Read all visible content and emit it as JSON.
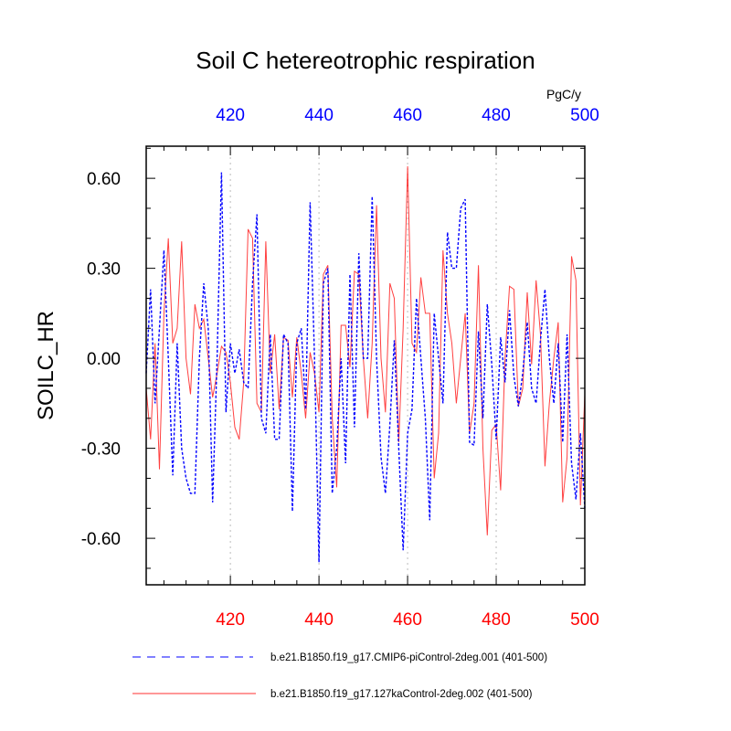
{
  "chart_data": {
    "type": "line",
    "title": "Soil C hetereotrophic respiration",
    "units_label": "PgC/y",
    "ylabel": "SOILC_HR",
    "xlabel": "",
    "xlim": [
      401,
      500
    ],
    "ylim": [
      -0.755,
      0.707
    ],
    "x_ticks": [
      420,
      440,
      460,
      480,
      500
    ],
    "x_tick_labels": [
      "420",
      "440",
      "460",
      "480",
      "500"
    ],
    "y_ticks": [
      0.6,
      0.3,
      0.0,
      -0.3,
      -0.6
    ],
    "y_tick_labels": [
      "0.60",
      "0.30",
      "0.00",
      "-0.30",
      "-0.60"
    ],
    "grid": "vertical dotted at major x ticks",
    "legend_position": "bottom",
    "colors": {
      "top_axis": "#0000ff",
      "bottom_axis": "#ff0000"
    },
    "x_start": 401,
    "series": [
      {
        "name": "b.e21.B1850.f19_g17.CMIP6-piControl-2deg.001 (401-500)",
        "color": "#0000ff",
        "dash": true,
        "values": [
          -0.05,
          0.23,
          -0.15,
          0.1,
          0.36,
          0.0,
          -0.39,
          0.05,
          -0.3,
          -0.4,
          -0.45,
          -0.45,
          0.0,
          0.25,
          0.1,
          -0.48,
          0.0,
          0.62,
          -0.18,
          0.05,
          -0.05,
          0.03,
          -0.08,
          -0.1,
          0.25,
          0.48,
          -0.2,
          -0.25,
          0.08,
          -0.27,
          -0.27,
          0.08,
          0.05,
          -0.51,
          0.05,
          0.1,
          -0.17,
          0.52,
          0.0,
          -0.68,
          0.25,
          0.3,
          -0.45,
          -0.3,
          0.0,
          -0.35,
          0.28,
          -0.23,
          0.35,
          0.0,
          0.0,
          0.54,
          0.0,
          -0.33,
          -0.45,
          -0.22,
          0.06,
          -0.3,
          -0.64,
          -0.25,
          -0.17,
          0.2,
          0.0,
          -0.2,
          -0.54,
          0.15,
          0.0,
          -0.15,
          0.42,
          0.3,
          0.3,
          0.5,
          0.53,
          -0.28,
          -0.29,
          0.09,
          -0.2,
          0.18,
          -0.02,
          -0.27,
          0.07,
          -0.08,
          0.16,
          -0.06,
          -0.16,
          -0.05,
          0.12,
          -0.1,
          -0.15,
          0.06,
          0.23,
          0.0,
          -0.15,
          0.05,
          -0.28,
          0.08,
          -0.35,
          -0.47,
          -0.25,
          -0.5
        ]
      },
      {
        "name": "b.e21.B1850.f19_g17.127kaControl-2deg.002 (401-500)",
        "color": "#ff0000",
        "dash": false,
        "values": [
          -0.1,
          -0.27,
          0.05,
          -0.37,
          0.15,
          0.4,
          0.05,
          0.1,
          0.39,
          0.0,
          -0.12,
          0.18,
          0.1,
          0.13,
          0.0,
          -0.13,
          -0.05,
          0.04,
          0.02,
          -0.08,
          -0.23,
          -0.27,
          -0.08,
          0.43,
          0.4,
          -0.15,
          -0.18,
          0.39,
          -0.05,
          0.08,
          -0.17,
          0.07,
          0.06,
          -0.13,
          0.07,
          -0.05,
          -0.2,
          0.02,
          -0.05,
          -0.18,
          0.28,
          0.31,
          -0.2,
          -0.43,
          0.11,
          0.11,
          -0.03,
          0.29,
          0.28,
          0.0,
          -0.2,
          0.05,
          0.51,
          0.0,
          -0.18,
          0.25,
          0.2,
          -0.28,
          0.1,
          0.64,
          0.05,
          0.02,
          0.27,
          0.15,
          0.15,
          -0.4,
          -0.25,
          0.36,
          0.15,
          0.05,
          -0.15,
          0.0,
          0.15,
          -0.25,
          -0.15,
          0.31,
          -0.3,
          -0.59,
          -0.24,
          -0.22,
          -0.44,
          0.0,
          0.24,
          0.23,
          -0.16,
          -0.1,
          0.22,
          -0.02,
          0.26,
          0.08,
          -0.36,
          -0.15,
          0.0,
          0.12,
          -0.48,
          -0.33,
          0.34,
          0.26,
          -0.49,
          -0.12
        ]
      }
    ]
  }
}
